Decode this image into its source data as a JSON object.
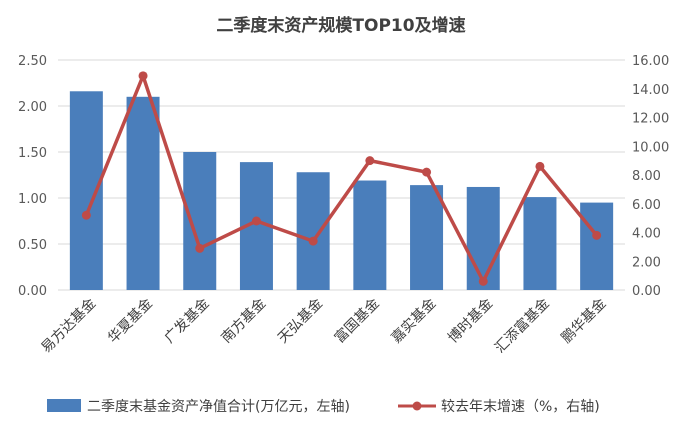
{
  "chart_data": {
    "type": "bar",
    "title": "二季度末资产规模TOP10及增速",
    "categories": [
      "易方达基金",
      "华夏基金",
      "广发基金",
      "南方基金",
      "天弘基金",
      "富国基金",
      "嘉实基金",
      "博时基金",
      "汇添富基金",
      "鹏华基金"
    ],
    "series": [
      {
        "name": "二季度末基金资产净值合计(万亿元，左轴)",
        "type": "bar",
        "axis": "left",
        "color": "#4a7ebb",
        "values": [
          2.16,
          2.1,
          1.5,
          1.39,
          1.28,
          1.19,
          1.14,
          1.12,
          1.01,
          0.95
        ]
      },
      {
        "name": "较去年末增速（%，右轴)",
        "type": "line",
        "axis": "right",
        "color": "#be4b48",
        "values": [
          5.2,
          14.9,
          2.9,
          4.8,
          3.4,
          9.0,
          8.2,
          0.6,
          8.6,
          3.8
        ]
      }
    ],
    "y_left": {
      "min": 0,
      "max": 2.5,
      "ticks": [
        "0.00",
        "0.50",
        "1.00",
        "1.50",
        "2.00",
        "2.50"
      ]
    },
    "y_right": {
      "min": 0,
      "max": 16,
      "ticks": [
        "0.00",
        "2.00",
        "4.00",
        "6.00",
        "8.00",
        "10.00",
        "12.00",
        "14.00",
        "16.00"
      ]
    },
    "grid": true,
    "legend": "bottom"
  }
}
